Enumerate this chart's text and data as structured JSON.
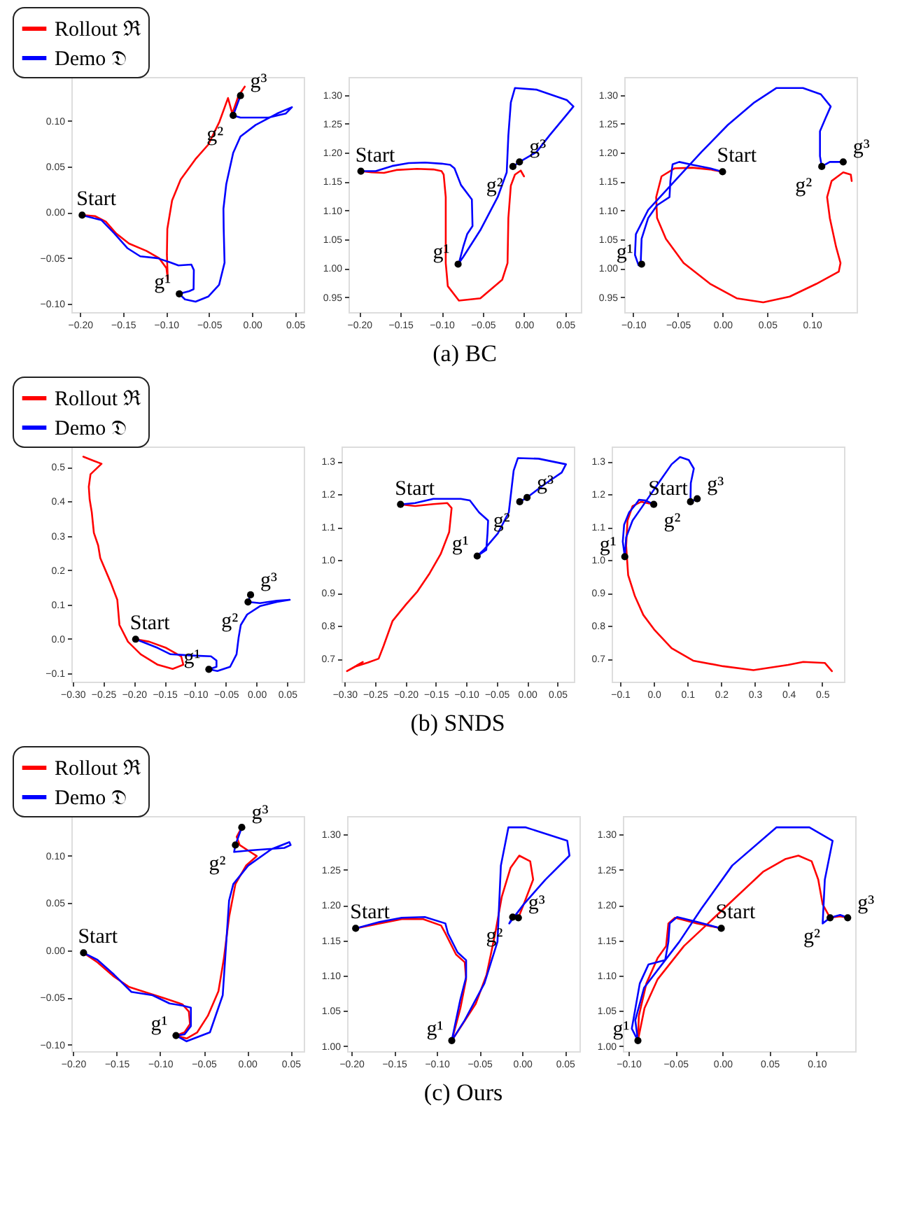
{
  "chart_data": [
    {
      "type": "line",
      "legend": "top left",
      "xlim": [
        -0.21,
        0.06
      ],
      "ylim": [
        -0.109,
        0.148
      ],
      "xticks": [
        {
          "value": -0.2,
          "label": "−0.20"
        },
        {
          "value": -0.15,
          "label": "−0.15"
        },
        {
          "value": -0.1,
          "label": "−0.10"
        },
        {
          "value": -0.05,
          "label": "−0.05"
        },
        {
          "value": 0,
          "label": "0.00"
        },
        {
          "value": 0.05,
          "label": "0.05"
        }
      ],
      "yticks": [
        {
          "value": -0.1,
          "label": "−0.10"
        },
        {
          "value": -0.05,
          "label": "−0.05"
        },
        {
          "value": 0,
          "label": "0.00"
        },
        {
          "value": 0.05,
          "label": "0.05"
        },
        {
          "value": 0.1,
          "label": "0.10"
        }
      ],
      "series": [
        {
          "name": "Rollout ℜ",
          "color": "#ff0000",
          "x": [
            -0.1975,
            -0.1826,
            -0.17,
            -0.158,
            -0.143,
            -0.123,
            -0.108,
            -0.0995,
            -0.098,
            -0.099,
            -0.0985,
            -0.093,
            -0.083,
            -0.066,
            -0.051,
            -0.038,
            -0.028,
            -0.023,
            -0.016,
            -0.0085
          ],
          "values": [
            -0.003,
            -0.004,
            -0.01,
            -0.023,
            -0.034,
            -0.042,
            -0.05,
            -0.061,
            -0.073,
            -0.046,
            -0.018,
            0.013,
            0.036,
            0.058,
            0.074,
            0.099,
            0.125,
            0.108,
            0.127,
            0.1375
          ]
        },
        {
          "name": "Demo 𝔇",
          "color": "#0000ff",
          "x": [
            -0.1975,
            -0.175,
            -0.16,
            -0.145,
            -0.13,
            -0.11,
            -0.0955,
            -0.0856,
            -0.0706,
            -0.0677,
            -0.068,
            -0.073,
            -0.0846,
            -0.078,
            -0.0657,
            -0.051,
            -0.0383,
            -0.032,
            -0.033,
            -0.0333,
            -0.03,
            -0.022,
            -0.0135,
            0.004,
            0.029,
            0.0463,
            0.039,
            0.019,
            -0.0135,
            -0.022,
            -0.0135
          ],
          "values": [
            -0.003,
            -0.0085,
            -0.023,
            -0.039,
            -0.048,
            -0.05,
            -0.0545,
            -0.058,
            -0.057,
            -0.063,
            -0.084,
            -0.086,
            -0.089,
            -0.095,
            -0.0975,
            -0.092,
            -0.079,
            -0.055,
            -0.018,
            0.004,
            0.031,
            0.065,
            0.083,
            0.0955,
            0.108,
            0.115,
            0.108,
            0.1036,
            0.1036,
            0.106,
            0.1276
          ]
        },
        {
          "type": "scatter",
          "marker": "circle",
          "color": "#000000",
          "x": [
            -0.1975,
            -0.0846,
            -0.022,
            -0.0135
          ],
          "values": [
            -0.003,
            -0.089,
            0.106,
            0.1276
          ]
        }
      ],
      "annotations": [
        {
          "text": "Start",
          "x": -0.1975,
          "y": -0.003
        },
        {
          "text": "g¹",
          "x": -0.0846,
          "y": -0.089
        },
        {
          "text": "g²",
          "x": -0.022,
          "y": 0.106
        },
        {
          "text": "g³",
          "x": -0.0135,
          "y": 0.1276
        }
      ]
    },
    {
      "type": "line",
      "title": "(a) BC",
      "xlim": [
        -0.213,
        0.069
      ],
      "ylim": [
        0.924,
        1.331
      ],
      "xticks": [
        {
          "value": -0.2,
          "label": "−0.20"
        },
        {
          "value": -0.15,
          "label": "−0.15"
        },
        {
          "value": -0.1,
          "label": "−0.10"
        },
        {
          "value": -0.05,
          "label": "−0.05"
        },
        {
          "value": 0,
          "label": "0.00"
        },
        {
          "value": 0.05,
          "label": "0.05"
        }
      ],
      "yticks": [
        {
          "value": 0.95,
          "label": "0.95"
        },
        {
          "value": 1,
          "label": "1.00"
        },
        {
          "value": 1.05,
          "label": "1.05"
        },
        {
          "value": 1.1,
          "label": "1.10"
        },
        {
          "value": 1.15,
          "label": "1.15"
        },
        {
          "value": 1.2,
          "label": "1.20"
        },
        {
          "value": 1.25,
          "label": "1.25"
        },
        {
          "value": 1.3,
          "label": "1.30"
        }
      ],
      "series": [
        {
          "color": "#ff0000",
          "x": [
            -0.198,
            -0.185,
            -0.17,
            -0.155,
            -0.13,
            -0.11,
            -0.1,
            -0.0975,
            -0.095,
            -0.095,
            -0.0925,
            -0.079,
            -0.053,
            -0.0265,
            -0.02,
            -0.019,
            -0.016,
            -0.011,
            -0.004,
            0.0
          ],
          "values": [
            1.168,
            1.166,
            1.165,
            1.17,
            1.172,
            1.171,
            1.168,
            1.162,
            1.123,
            1.009,
            0.969,
            0.944,
            0.948,
            0.98,
            1.009,
            1.087,
            1.143,
            1.162,
            1.169,
            1.159
          ]
        },
        {
          "color": "#0000ff",
          "x": [
            -0.198,
            -0.18,
            -0.16,
            -0.14,
            -0.12,
            -0.1,
            -0.0896,
            -0.0844,
            -0.0765,
            -0.0633,
            -0.0625,
            -0.069,
            -0.0738,
            -0.079,
            -0.08,
            -0.074,
            -0.053,
            -0.032,
            -0.021,
            -0.019,
            -0.016,
            -0.011,
            0.0155,
            0.052,
            0.06,
            0.052,
            0.031,
            0.015,
            -0.0055,
            -0.0135
          ],
          "values": [
            1.168,
            1.168,
            1.177,
            1.182,
            1.183,
            1.181,
            1.179,
            1.173,
            1.144,
            1.119,
            1.073,
            1.059,
            1.037,
            1.009,
            1.007,
            1.019,
            1.066,
            1.123,
            1.166,
            1.23,
            1.287,
            1.312,
            1.309,
            1.291,
            1.28,
            1.266,
            1.23,
            1.201,
            1.184,
            1.176
          ]
        },
        {
          "type": "scatter",
          "marker": "circle",
          "color": "#000000",
          "x": [
            -0.198,
            -0.08,
            -0.0135,
            -0.0055
          ],
          "values": [
            1.168,
            1.007,
            1.176,
            1.184
          ]
        }
      ],
      "annotations": [
        {
          "text": "Start",
          "x": -0.198,
          "y": 1.168
        },
        {
          "text": "g¹",
          "x": -0.08,
          "y": 1.007
        },
        {
          "text": "g²",
          "x": -0.0135,
          "y": 1.176
        },
        {
          "text": "g³",
          "x": -0.0055,
          "y": 1.184
        }
      ]
    },
    {
      "type": "line",
      "xlim": [
        -0.11,
        0.15
      ],
      "ylim": [
        0.924,
        1.331
      ],
      "xticks": [
        {
          "value": -0.1,
          "label": "−0.10"
        },
        {
          "value": -0.05,
          "label": "−0.05"
        },
        {
          "value": 0,
          "label": "0.00"
        },
        {
          "value": 0.05,
          "label": "0.05"
        },
        {
          "value": 0.1,
          "label": "0.10"
        }
      ],
      "yticks": [
        {
          "value": 0.95,
          "label": "0.95"
        },
        {
          "value": 1,
          "label": "1.00"
        },
        {
          "value": 1.05,
          "label": "1.05"
        },
        {
          "value": 1.1,
          "label": "1.10"
        },
        {
          "value": 1.15,
          "label": "1.15"
        },
        {
          "value": 1.2,
          "label": "1.20"
        },
        {
          "value": 1.25,
          "label": "1.25"
        },
        {
          "value": 1.3,
          "label": "1.30"
        }
      ],
      "series": [
        {
          "color": "#ff0000",
          "x": [
            0.0,
            -0.0139,
            -0.0337,
            -0.0535,
            -0.0683,
            -0.0743,
            -0.0733,
            -0.0634,
            -0.0436,
            -0.0139,
            0.0158,
            0.0455,
            0.0752,
            0.105,
            0.13,
            0.132,
            0.127,
            0.12,
            0.117,
            0.122,
            0.135,
            0.1435,
            0.1445
          ],
          "values": [
            1.167,
            1.171,
            1.174,
            1.173,
            1.159,
            1.123,
            1.087,
            1.051,
            1.009,
            0.973,
            0.948,
            0.941,
            0.951,
            0.973,
            0.994,
            1.009,
            1.037,
            1.087,
            1.123,
            1.151,
            1.166,
            1.162,
            1.151
          ]
        },
        {
          "color": "#0000ff",
          "x": [
            0.0,
            -0.0139,
            -0.0337,
            -0.0485,
            -0.0559,
            -0.0584,
            -0.0594,
            -0.0733,
            -0.0832,
            -0.0906,
            -0.0916,
            -0.094,
            -0.098,
            -0.097,
            -0.0832,
            -0.0535,
            -0.0238,
            0.0059,
            0.0356,
            0.0604,
            0.09,
            0.11,
            0.121,
            0.115,
            0.109,
            0.109,
            0.111,
            0.12,
            0.135
          ],
          "values": [
            1.167,
            1.173,
            1.179,
            1.184,
            1.18,
            1.151,
            1.123,
            1.109,
            1.087,
            1.051,
            1.009,
            1.005,
            1.023,
            1.059,
            1.101,
            1.151,
            1.201,
            1.248,
            1.287,
            1.312,
            1.312,
            1.301,
            1.28,
            1.259,
            1.237,
            1.194,
            1.176,
            1.184,
            1.184
          ]
        },
        {
          "type": "scatter",
          "marker": "circle",
          "color": "#000000",
          "x": [
            0.0,
            -0.0906,
            0.111,
            0.135
          ],
          "values": [
            1.167,
            1.007,
            1.176,
            1.184
          ]
        }
      ],
      "annotations": [
        {
          "text": "Start",
          "x": 0.0,
          "y": 1.167
        },
        {
          "text": "g¹",
          "x": -0.0906,
          "y": 1.007
        },
        {
          "text": "g²",
          "x": 0.111,
          "y": 1.176
        },
        {
          "text": "g³",
          "x": 0.135,
          "y": 1.184
        }
      ]
    },
    {
      "type": "line",
      "legend": "top left",
      "xlim": [
        -0.302,
        0.077
      ],
      "ylim": [
        -0.125,
        0.56
      ],
      "xticks": [
        {
          "value": -0.3,
          "label": "−0.30"
        },
        {
          "value": -0.25,
          "label": "−0.25"
        },
        {
          "value": -0.2,
          "label": "−0.20"
        },
        {
          "value": -0.15,
          "label": "−0.15"
        },
        {
          "value": -0.1,
          "label": "−0.10"
        },
        {
          "value": -0.05,
          "label": "−0.05"
        },
        {
          "value": 0,
          "label": "0.00"
        },
        {
          "value": 0.05,
          "label": "0.05"
        }
      ],
      "yticks": [
        {
          "value": -0.1,
          "label": "−0.1"
        },
        {
          "value": 0,
          "label": "0.0"
        },
        {
          "value": 0.1,
          "label": "0.1"
        },
        {
          "value": 0.2,
          "label": "0.2"
        },
        {
          "value": 0.3,
          "label": "0.3"
        },
        {
          "value": 0.4,
          "label": "0.4"
        },
        {
          "value": 0.5,
          "label": "0.5"
        }
      ],
      "series": [
        {
          "name": "Rollout ℜ",
          "color": "#ff0000",
          "x": [
            -0.1972,
            -0.175,
            -0.1472,
            -0.1229,
            -0.1194,
            -0.1368,
            -0.1611,
            -0.1889,
            -0.2097,
            -0.2236,
            -0.2271,
            -0.2375,
            -0.2549,
            -0.2583,
            -0.2653,
            -0.2688,
            -0.2722,
            -0.2736,
            -0.2708,
            -0.2528,
            -0.2653,
            -0.2826
          ],
          "values": [
            -0.0012,
            -0.0085,
            -0.0268,
            -0.0512,
            -0.0756,
            -0.0878,
            -0.0756,
            -0.0451,
            -0.0085,
            0.0402,
            0.1134,
            0.1622,
            0.2354,
            0.272,
            0.3085,
            0.3695,
            0.4061,
            0.4427,
            0.4793,
            0.5098,
            0.5183,
            0.5305
          ]
        },
        {
          "name": "Demo 𝔇",
          "color": "#0000ff",
          "x": [
            -0.1972,
            -0.1611,
            -0.1403,
            -0.1056,
            -0.0743,
            -0.0653,
            -0.0653,
            -0.0778,
            -0.0639,
            -0.0431,
            -0.0326,
            -0.0292,
            -0.0257,
            -0.0153,
            0.0056,
            0.0333,
            0.0542,
            0.0333,
            0.0056,
            -0.0139,
            -0.0097
          ],
          "values": [
            -0.0012,
            -0.0268,
            -0.0451,
            -0.0488,
            -0.0512,
            -0.0634,
            -0.0817,
            -0.089,
            -0.0939,
            -0.0817,
            -0.0451,
            0.0037,
            0.0402,
            0.0707,
            0.0951,
            0.1073,
            0.1134,
            0.111,
            0.1037,
            0.1073,
            0.128
          ]
        },
        {
          "type": "scatter",
          "marker": "circle",
          "color": "#000000",
          "x": [
            -0.1972,
            -0.0778,
            -0.0139,
            -0.0097
          ],
          "values": [
            -0.0012,
            -0.089,
            0.1073,
            0.128
          ]
        }
      ],
      "annotations": [
        {
          "text": "Start",
          "x": -0.1972,
          "y": -0.0012
        },
        {
          "text": "g¹",
          "x": -0.0778,
          "y": -0.089
        },
        {
          "text": "g²",
          "x": -0.0139,
          "y": 0.1073
        },
        {
          "text": "g³",
          "x": -0.0097,
          "y": 0.128
        }
      ]
    },
    {
      "type": "line",
      "title": "(b) SNDS",
      "xlim": [
        -0.305,
        0.077
      ],
      "ylim": [
        0.63,
        1.345
      ],
      "xticks": [
        {
          "value": -0.3,
          "label": "−0.30"
        },
        {
          "value": -0.25,
          "label": "−0.25"
        },
        {
          "value": -0.2,
          "label": "−0.20"
        },
        {
          "value": -0.15,
          "label": "−0.15"
        },
        {
          "value": -0.1,
          "label": "−0.10"
        },
        {
          "value": -0.05,
          "label": "−0.05"
        },
        {
          "value": 0,
          "label": "0.00"
        },
        {
          "value": 0.05,
          "label": "0.05"
        }
      ],
      "yticks": [
        {
          "value": 0.7,
          "label": "0.7"
        },
        {
          "value": 0.8,
          "label": "0.8"
        },
        {
          "value": 0.9,
          "label": "0.9"
        },
        {
          "value": 1,
          "label": "1.0"
        },
        {
          "value": 1.1,
          "label": "1.1"
        },
        {
          "value": 1.2,
          "label": "1.2"
        },
        {
          "value": 1.3,
          "label": "1.3"
        }
      ],
      "series": [
        {
          "color": "#ff0000",
          "x": [
            -0.208,
            -0.184,
            -0.154,
            -0.131,
            -0.124,
            -0.128,
            -0.142,
            -0.16,
            -0.18,
            -0.199,
            -0.221,
            -0.236,
            -0.244,
            -0.262,
            -0.281,
            -0.296,
            -0.27
          ],
          "values": [
            1.169,
            1.164,
            1.17,
            1.173,
            1.158,
            1.085,
            1.018,
            0.96,
            0.905,
            0.865,
            0.815,
            0.738,
            0.7,
            0.688,
            0.677,
            0.662,
            0.69
          ]
        },
        {
          "color": "#0000ff",
          "x": [
            -0.208,
            -0.184,
            -0.154,
            -0.109,
            -0.094,
            -0.079,
            -0.064,
            -0.065,
            -0.067,
            -0.082,
            -0.071,
            -0.048,
            -0.03,
            -0.022,
            -0.015,
            0.019,
            0.064,
            0.057,
            0.027,
            0.0,
            -0.012
          ],
          "values": [
            1.169,
            1.173,
            1.186,
            1.186,
            1.181,
            1.145,
            1.12,
            1.081,
            1.031,
            1.012,
            1.031,
            1.081,
            1.145,
            1.272,
            1.31,
            1.308,
            1.291,
            1.266,
            1.228,
            1.19,
            1.177
          ]
        },
        {
          "type": "scatter",
          "marker": "circle",
          "color": "#000000",
          "x": [
            -0.208,
            -0.082,
            -0.012,
            0.0
          ],
          "values": [
            1.169,
            1.012,
            1.177,
            1.19
          ]
        }
      ],
      "annotations": [
        {
          "text": "Start",
          "x": -0.208,
          "y": 1.169
        },
        {
          "text": "g¹",
          "x": -0.082,
          "y": 1.012
        },
        {
          "text": "g²",
          "x": -0.012,
          "y": 1.177
        },
        {
          "text": "g³",
          "x": 0.0,
          "y": 1.19
        }
      ]
    },
    {
      "type": "line",
      "xlim": [
        -0.125,
        0.565
      ],
      "ylim": [
        0.63,
        1.345
      ],
      "xticks": [
        {
          "value": -0.1,
          "label": "−0.1"
        },
        {
          "value": 0,
          "label": "0.0"
        },
        {
          "value": 0.1,
          "label": "0.1"
        },
        {
          "value": 0.2,
          "label": "0.2"
        },
        {
          "value": 0.3,
          "label": "0.3"
        },
        {
          "value": 0.4,
          "label": "0.4"
        },
        {
          "value": 0.5,
          "label": "0.5"
        }
      ],
      "yticks": [
        {
          "value": 0.7,
          "label": "0.7"
        },
        {
          "value": 0.8,
          "label": "0.8"
        },
        {
          "value": 0.9,
          "label": "0.9"
        },
        {
          "value": 1,
          "label": "1.0"
        },
        {
          "value": 1.1,
          "label": "1.1"
        },
        {
          "value": 1.2,
          "label": "1.2"
        },
        {
          "value": 1.3,
          "label": "1.3"
        }
      ],
      "series": [
        {
          "color": "#ff0000",
          "x": [
            0.0,
            -0.037,
            -0.063,
            -0.078,
            -0.082,
            -0.076,
            -0.056,
            -0.031,
            0.001,
            0.053,
            0.117,
            0.206,
            0.296,
            0.399,
            0.444,
            0.508,
            0.529
          ],
          "values": [
            1.169,
            1.177,
            1.164,
            1.12,
            1.043,
            0.954,
            0.89,
            0.833,
            0.789,
            0.732,
            0.694,
            0.677,
            0.665,
            0.681,
            0.69,
            0.687,
            0.662
          ]
        },
        {
          "color": "#0000ff",
          "x": [
            0.0,
            -0.024,
            -0.044,
            -0.053,
            -0.073,
            -0.088,
            -0.092,
            -0.086,
            -0.082,
            -0.063,
            -0.037,
            0.014,
            0.053,
            0.078,
            0.104,
            0.119,
            0.11,
            0.109,
            0.129
          ],
          "values": [
            1.169,
            1.181,
            1.183,
            1.17,
            1.145,
            1.107,
            1.056,
            1.01,
            1.069,
            1.12,
            1.158,
            1.234,
            1.291,
            1.313,
            1.304,
            1.278,
            1.234,
            1.177,
            1.186
          ]
        },
        {
          "type": "scatter",
          "marker": "circle",
          "color": "#000000",
          "x": [
            0.0,
            -0.086,
            0.109,
            0.129
          ],
          "values": [
            1.169,
            1.01,
            1.177,
            1.186
          ]
        }
      ],
      "annotations": [
        {
          "text": "Start",
          "x": 0.0,
          "y": 1.169
        },
        {
          "text": "g¹",
          "x": -0.086,
          "y": 1.01
        },
        {
          "text": "g²",
          "x": 0.109,
          "y": 1.177
        },
        {
          "text": "g³",
          "x": 0.129,
          "y": 1.186
        }
      ]
    },
    {
      "type": "line",
      "legend": "top left",
      "xlim": [
        -0.202,
        0.065
      ],
      "ylim": [
        -0.107,
        0.142
      ],
      "xticks": [
        {
          "value": -0.2,
          "label": "−0.20"
        },
        {
          "value": -0.15,
          "label": "−0.15"
        },
        {
          "value": -0.1,
          "label": "−0.10"
        },
        {
          "value": -0.05,
          "label": "−0.05"
        },
        {
          "value": 0,
          "label": "0.00"
        },
        {
          "value": 0.05,
          "label": "0.05"
        }
      ],
      "yticks": [
        {
          "value": -0.1,
          "label": "−0.10"
        },
        {
          "value": -0.05,
          "label": "−0.05"
        },
        {
          "value": 0,
          "label": "0.00"
        },
        {
          "value": 0.05,
          "label": "0.05"
        },
        {
          "value": 0.1,
          "label": "0.10"
        }
      ],
      "series": [
        {
          "name": "Rollout ℜ",
          "color": "#ff0000",
          "x": [
            -0.188,
            -0.172,
            -0.153,
            -0.1355,
            -0.1136,
            -0.094,
            -0.0745,
            -0.067,
            -0.0657,
            -0.072,
            -0.0818,
            -0.0696,
            -0.0574,
            -0.0452,
            -0.033,
            -0.0267,
            -0.0208,
            -0.0135,
            -0.0013,
            0.011,
            0.0036,
            -0.0086,
            -0.012,
            -0.0062
          ],
          "values": [
            -0.0028,
            -0.0129,
            -0.0281,
            -0.039,
            -0.0455,
            -0.0512,
            -0.0573,
            -0.0651,
            -0.0782,
            -0.087,
            -0.0904,
            -0.0935,
            -0.087,
            -0.0695,
            -0.0434,
            -0.0085,
            0.0351,
            0.07,
            0.0895,
            0.0996,
            0.104,
            0.1113,
            0.12,
            0.13
          ]
        },
        {
          "name": "Demo 𝔇",
          "color": "#0000ff",
          "x": [
            -0.188,
            -0.172,
            -0.153,
            -0.133,
            -0.1087,
            -0.0892,
            -0.0745,
            -0.0647,
            -0.0647,
            -0.072,
            -0.0818,
            -0.0696,
            -0.0428,
            -0.0281,
            -0.0208,
            -0.0159,
            0.0011,
            0.028,
            0.0485,
            0.05,
            0.0427,
            0.0036,
            -0.015,
            -0.0135,
            -0.0062
          ],
          "values": [
            -0.0028,
            -0.0103,
            -0.0259,
            -0.0442,
            -0.0477,
            -0.0564,
            -0.0586,
            -0.0608,
            -0.0804,
            -0.0891,
            -0.0904,
            -0.0965,
            -0.087,
            -0.0477,
            0.0525,
            0.07,
            0.0895,
            0.107,
            0.1144,
            0.1113,
            0.1083,
            0.1057,
            0.104,
            0.1113,
            0.13
          ]
        },
        {
          "type": "scatter",
          "marker": "circle",
          "color": "#000000",
          "x": [
            -0.188,
            -0.0818,
            -0.0135,
            -0.0062
          ],
          "values": [
            -0.0028,
            -0.0904,
            0.1113,
            0.13
          ]
        }
      ],
      "annotations": [
        {
          "text": "Start",
          "x": -0.188,
          "y": -0.0028
        },
        {
          "text": "g¹",
          "x": -0.0818,
          "y": -0.0904
        },
        {
          "text": "g²",
          "x": -0.0135,
          "y": 0.1113
        },
        {
          "text": "g³",
          "x": -0.0062,
          "y": 0.13
        }
      ]
    },
    {
      "type": "line",
      "title": "(c) Ours",
      "xlim": [
        -0.205,
        0.067
      ],
      "ylim": [
        0.993,
        1.326
      ],
      "xticks": [
        {
          "value": -0.2,
          "label": "−0.20"
        },
        {
          "value": -0.15,
          "label": "−0.15"
        },
        {
          "value": -0.1,
          "label": "−0.10"
        },
        {
          "value": -0.05,
          "label": "−0.05"
        },
        {
          "value": 0,
          "label": "0.00"
        },
        {
          "value": 0.05,
          "label": "0.05"
        }
      ],
      "yticks": [
        {
          "value": 1,
          "label": "1.00"
        },
        {
          "value": 1.05,
          "label": "1.05"
        },
        {
          "value": 1.1,
          "label": "1.10"
        },
        {
          "value": 1.15,
          "label": "1.15"
        },
        {
          "value": 1.2,
          "label": "1.20"
        },
        {
          "value": 1.25,
          "label": "1.25"
        },
        {
          "value": 1.3,
          "label": "1.30"
        }
      ],
      "series": [
        {
          "color": "#ff0000",
          "x": [
            -0.195,
            -0.167,
            -0.141,
            -0.116,
            -0.095,
            -0.09,
            -0.0775,
            -0.0673,
            -0.0657,
            -0.0724,
            -0.0825,
            -0.07,
            -0.0545,
            -0.0418,
            -0.0316,
            -0.0239,
            -0.0136,
            -0.0035,
            0.0093,
            0.0128,
            0.0017,
            -0.0045
          ],
          "values": [
            1.167,
            1.174,
            1.18,
            1.18,
            1.171,
            1.16,
            1.13,
            1.119,
            1.095,
            1.054,
            1.008,
            1.031,
            1.06,
            1.101,
            1.16,
            1.212,
            1.253,
            1.27,
            1.262,
            1.236,
            1.201,
            1.182
          ]
        },
        {
          "color": "#0000ff",
          "x": [
            -0.195,
            -0.167,
            -0.141,
            -0.114,
            -0.09,
            -0.087,
            -0.0757,
            -0.0657,
            -0.0657,
            -0.0725,
            -0.0825,
            -0.0673,
            -0.0443,
            -0.029,
            -0.025,
            -0.0162,
            0.0042,
            0.0527,
            0.0553,
            0.0271,
            0.0017,
            -0.0152,
            -0.0112
          ],
          "values": [
            1.167,
            1.176,
            1.182,
            1.183,
            1.174,
            1.16,
            1.133,
            1.122,
            1.098,
            1.066,
            1.008,
            1.037,
            1.089,
            1.148,
            1.256,
            1.31,
            1.31,
            1.291,
            1.27,
            1.236,
            1.201,
            1.174,
            1.183
          ]
        },
        {
          "type": "scatter",
          "marker": "circle",
          "color": "#000000",
          "x": [
            -0.195,
            -0.0825,
            -0.0112,
            -0.0045
          ],
          "values": [
            1.167,
            1.008,
            1.183,
            1.182
          ]
        }
      ],
      "annotations": [
        {
          "text": "Start",
          "x": -0.195,
          "y": 1.167
        },
        {
          "text": "g¹",
          "x": -0.0825,
          "y": 1.008
        },
        {
          "text": "g²",
          "x": -0.0112,
          "y": 1.183
        },
        {
          "text": "g³",
          "x": -0.0045,
          "y": 1.182
        }
      ]
    },
    {
      "type": "line",
      "xlim": [
        -0.106,
        0.141
      ],
      "ylim": [
        0.993,
        1.326
      ],
      "xticks": [
        {
          "value": -0.1,
          "label": "−0.10"
        },
        {
          "value": -0.05,
          "label": "−0.05"
        },
        {
          "value": 0,
          "label": "0.00"
        },
        {
          "value": 0.05,
          "label": "0.05"
        },
        {
          "value": 0.1,
          "label": "0.10"
        }
      ],
      "yticks": [
        {
          "value": 1,
          "label": "1.00"
        },
        {
          "value": 1.05,
          "label": "1.05"
        },
        {
          "value": 1.1,
          "label": "1.10"
        },
        {
          "value": 1.15,
          "label": "1.15"
        },
        {
          "value": 1.2,
          "label": "1.20"
        },
        {
          "value": 1.25,
          "label": "1.25"
        },
        {
          "value": 1.3,
          "label": "1.30"
        }
      ],
      "series": [
        {
          "color": "#ff0000",
          "x": [
            -0.0014,
            -0.027,
            -0.0506,
            -0.0576,
            -0.06,
            -0.069,
            -0.081,
            -0.089,
            -0.09,
            -0.083,
            -0.069,
            -0.041,
            -0.013,
            0.015,
            0.043,
            0.0665,
            0.0806,
            0.0947,
            0.1017,
            0.1064,
            0.1143,
            0.125,
            0.133
          ],
          "values": [
            1.167,
            1.174,
            1.182,
            1.174,
            1.142,
            1.125,
            1.089,
            1.043,
            1.008,
            1.054,
            1.095,
            1.142,
            1.177,
            1.212,
            1.247,
            1.265,
            1.27,
            1.262,
            1.236,
            1.201,
            1.182,
            1.184,
            1.182
          ]
        },
        {
          "color": "#0000ff",
          "x": [
            -0.0014,
            -0.027,
            -0.0483,
            -0.0562,
            -0.0576,
            -0.061,
            -0.0787,
            -0.088,
            -0.0965,
            -0.09,
            -0.0928,
            -0.0834,
            -0.046,
            -0.0225,
            0.0103,
            0.0572,
            0.0923,
            0.117,
            0.1087,
            0.1064,
            0.1143,
            0.125,
            0.133
          ],
          "values": [
            1.167,
            1.176,
            1.183,
            1.174,
            1.148,
            1.122,
            1.116,
            1.089,
            1.025,
            1.008,
            1.037,
            1.083,
            1.148,
            1.195,
            1.256,
            1.31,
            1.31,
            1.291,
            1.236,
            1.174,
            1.182,
            1.186,
            1.182
          ]
        },
        {
          "type": "scatter",
          "marker": "circle",
          "color": "#000000",
          "x": [
            -0.0014,
            -0.09,
            0.1143,
            0.133
          ],
          "values": [
            1.167,
            1.008,
            1.182,
            1.182
          ]
        }
      ],
      "annotations": [
        {
          "text": "Start",
          "x": -0.0014,
          "y": 1.167
        },
        {
          "text": "g¹",
          "x": -0.09,
          "y": 1.008
        },
        {
          "text": "g²",
          "x": 0.1143,
          "y": 1.182
        },
        {
          "text": "g³",
          "x": 0.133,
          "y": 1.182
        }
      ]
    }
  ]
}
